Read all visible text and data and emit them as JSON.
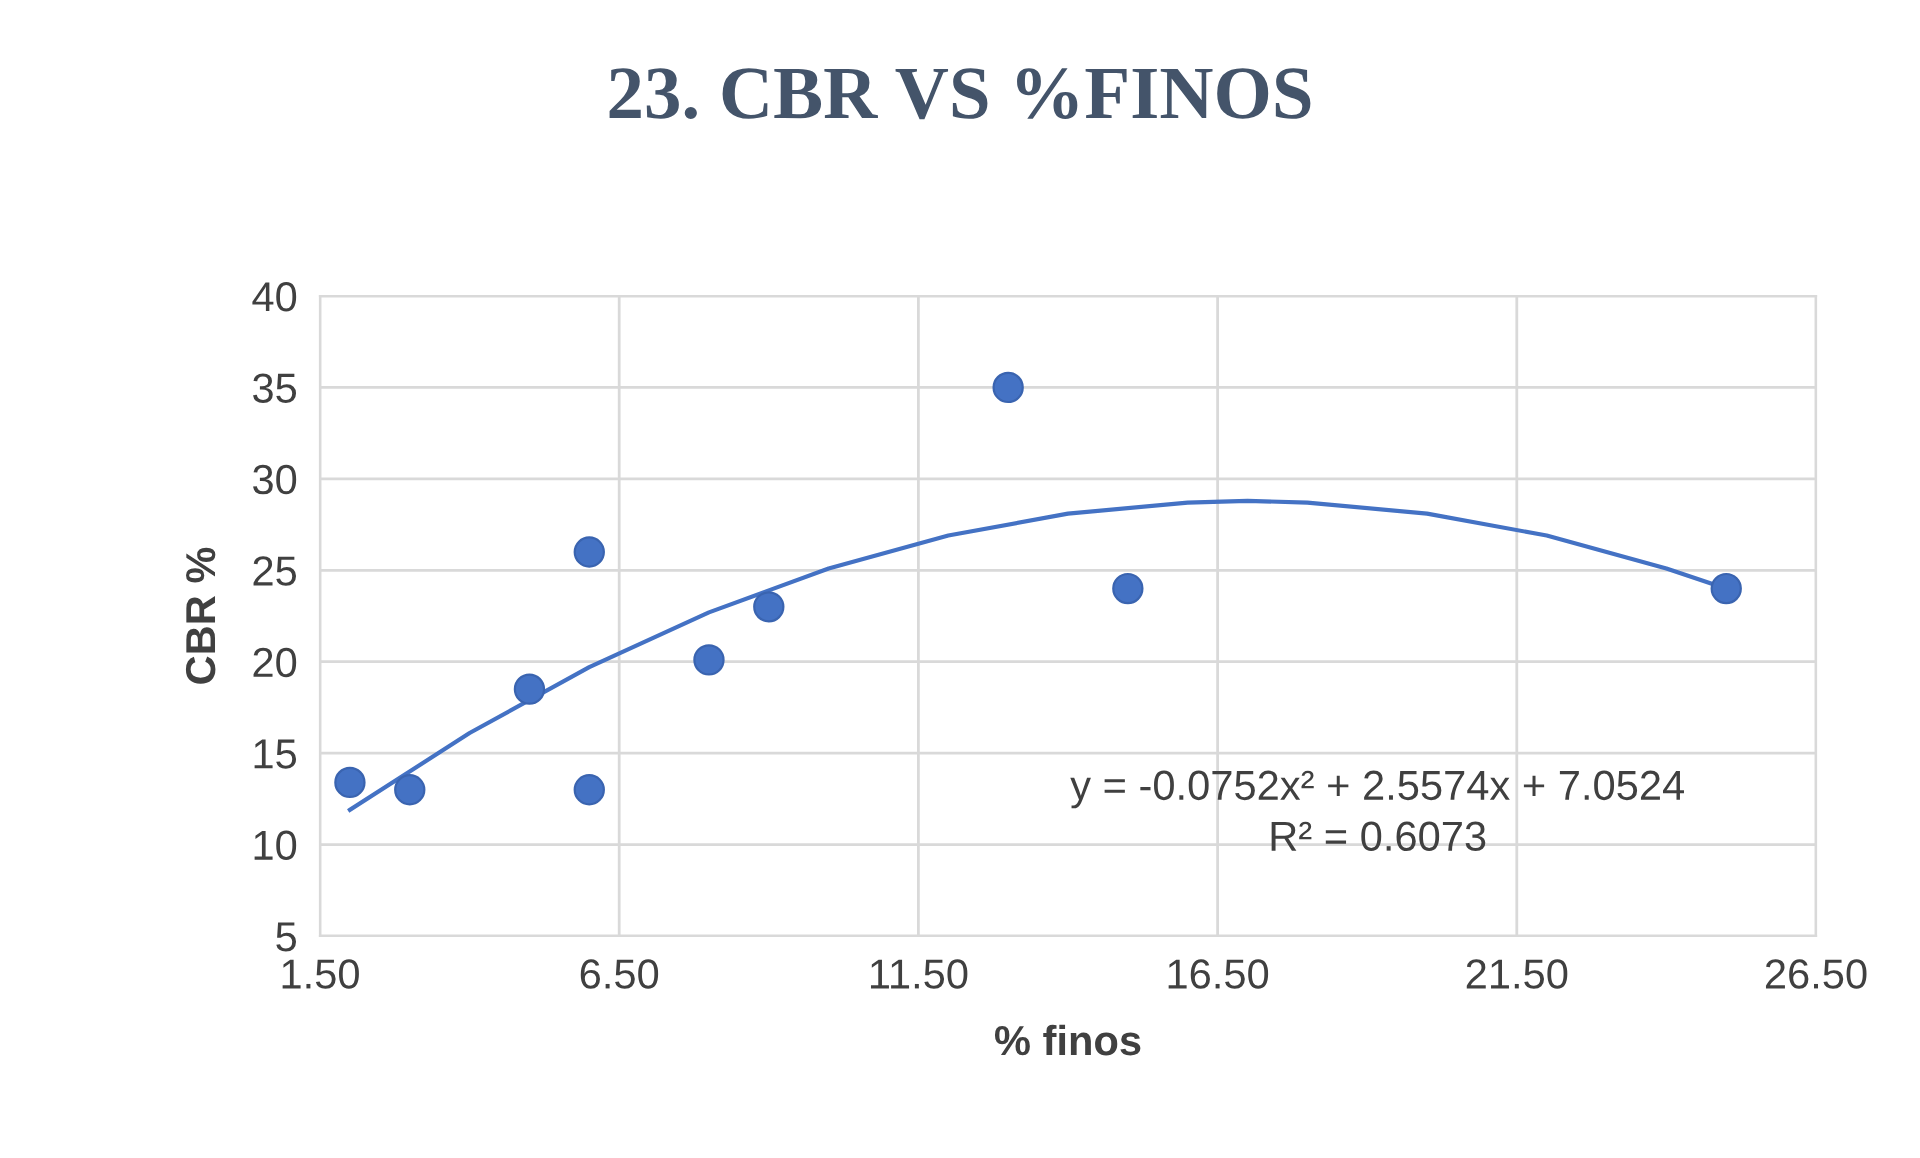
{
  "chart_data": {
    "type": "scatter",
    "title": "23. CBR VS %FINOS",
    "xlabel": "% finos",
    "ylabel": "CBR %",
    "xlim": [
      1.5,
      26.5
    ],
    "xticks": [
      {
        "value": 1.5,
        "label": "1.50"
      },
      {
        "value": 6.5,
        "label": "6.50"
      },
      {
        "value": 11.5,
        "label": "11.50"
      },
      {
        "value": 16.5,
        "label": "16.50"
      },
      {
        "value": 21.5,
        "label": "21.50"
      },
      {
        "value": 26.5,
        "label": "26.50"
      }
    ],
    "ylim": [
      5,
      40
    ],
    "yticks": [
      5,
      10,
      15,
      20,
      25,
      30,
      35,
      40
    ],
    "grid": true,
    "series": [
      {
        "marker": "circle",
        "color": "#4472c4",
        "x": [
          2,
          3,
          5,
          6,
          6,
          8,
          9,
          13,
          15,
          25
        ],
        "values": [
          13.4,
          13,
          18.5,
          26,
          13,
          20.1,
          23,
          35,
          24,
          24
        ]
      },
      {
        "type": "line",
        "color": "#4472c4",
        "line_style": "solid",
        "x": [
          2,
          4,
          6,
          8,
          10,
          12,
          14,
          16,
          17,
          18,
          20,
          22,
          24,
          25
        ],
        "values": [
          11.9,
          16.1,
          19.7,
          22.7,
          25.1,
          26.9,
          28.1,
          28.7,
          28.8,
          28.7,
          28.1,
          26.9,
          25.1,
          24.0
        ]
      }
    ],
    "annotations": [
      "y = -0.0752x² + 2.5574x + 7.0524\nR² = 0.6073"
    ]
  }
}
